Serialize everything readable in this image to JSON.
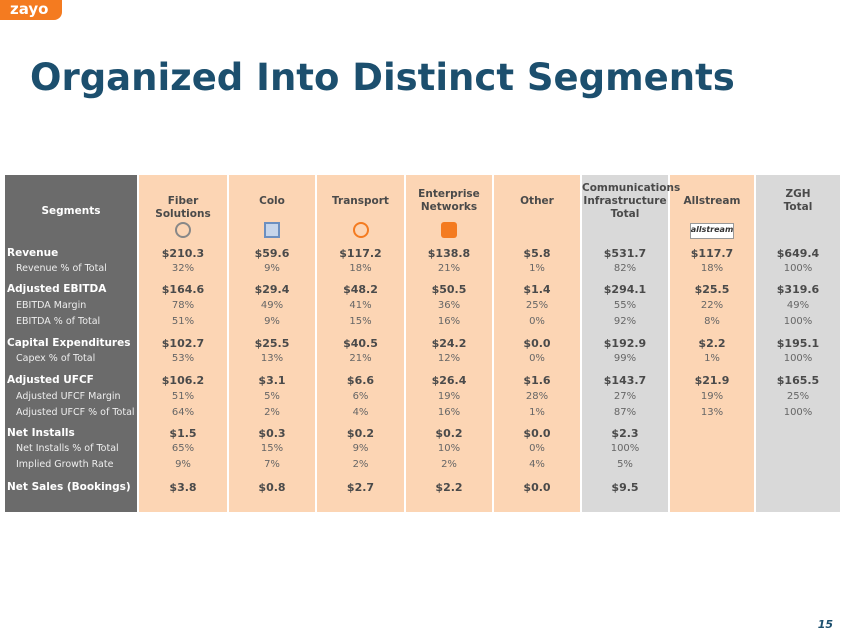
{
  "logo": "zayo",
  "title": "Organized Into Distinct Segments",
  "table": {
    "corner": "Segments",
    "columns": [
      {
        "lines": [
          "Fiber Solutions"
        ]
      },
      {
        "lines": [
          "Colo"
        ]
      },
      {
        "lines": [
          "Transport"
        ]
      },
      {
        "lines": [
          "Enterprise",
          "Networks"
        ]
      },
      {
        "lines": [
          "Other"
        ]
      },
      {
        "lines": [
          "Communications",
          "Infrastructure",
          "Total"
        ]
      },
      {
        "lines": [
          "Allstream"
        ],
        "logo": "allstream"
      },
      {
        "lines": [
          "ZGH",
          "Total"
        ]
      }
    ],
    "groups": [
      {
        "rows": [
          {
            "label": "Revenue",
            "values": [
              "$210.3",
              "$59.6",
              "$117.2",
              "$138.8",
              "$5.8",
              "$531.7",
              "$117.7",
              "$649.4"
            ]
          },
          {
            "label": "Revenue % of Total",
            "values": [
              "32%",
              "9%",
              "18%",
              "21%",
              "1%",
              "82%",
              "18%",
              "100%"
            ]
          }
        ]
      },
      {
        "rows": [
          {
            "label": "Adjusted EBITDA",
            "values": [
              "$164.6",
              "$29.4",
              "$48.2",
              "$50.5",
              "$1.4",
              "$294.1",
              "$25.5",
              "$319.6"
            ]
          },
          {
            "label": "EBITDA Margin",
            "values": [
              "78%",
              "49%",
              "41%",
              "36%",
              "25%",
              "55%",
              "22%",
              "49%"
            ]
          },
          {
            "label": "EBITDA % of Total",
            "values": [
              "51%",
              "9%",
              "15%",
              "16%",
              "0%",
              "92%",
              "8%",
              "100%"
            ]
          }
        ]
      },
      {
        "rows": [
          {
            "label": "Capital Expenditures",
            "values": [
              "$102.7",
              "$25.5",
              "$40.5",
              "$24.2",
              "$0.0",
              "$192.9",
              "$2.2",
              "$195.1"
            ]
          },
          {
            "label": "Capex % of Total",
            "values": [
              "53%",
              "13%",
              "21%",
              "12%",
              "0%",
              "99%",
              "1%",
              "100%"
            ]
          }
        ]
      },
      {
        "rows": [
          {
            "label": "Adjusted UFCF",
            "values": [
              "$106.2",
              "$3.1",
              "$6.6",
              "$26.4",
              "$1.6",
              "$143.7",
              "$21.9",
              "$165.5"
            ]
          },
          {
            "label": "Adjusted UFCF Margin",
            "values": [
              "51%",
              "5%",
              "6%",
              "19%",
              "28%",
              "27%",
              "19%",
              "25%"
            ]
          },
          {
            "label": "Adjusted UFCF % of Total",
            "values": [
              "64%",
              "2%",
              "4%",
              "16%",
              "1%",
              "87%",
              "13%",
              "100%"
            ]
          }
        ]
      },
      {
        "rows": [
          {
            "label": "Net Installs",
            "values": [
              "$1.5",
              "$0.3",
              "$0.2",
              "$0.2",
              "$0.0",
              "$2.3"
            ]
          },
          {
            "label": "Net Installs % of Total",
            "values": [
              "65%",
              "15%",
              "9%",
              "10%",
              "0%",
              "100%"
            ]
          },
          {
            "label": "Implied Growth Rate",
            "values": [
              "9%",
              "7%",
              "2%",
              "2%",
              "4%",
              "5%"
            ]
          }
        ]
      },
      {
        "rows": [
          {
            "label": "Net Sales (Bookings)",
            "values": [
              "$3.8",
              "$0.8",
              "$2.7",
              "$2.2",
              "$0.0",
              "$9.5"
            ]
          }
        ]
      }
    ]
  },
  "page_number": "15"
}
